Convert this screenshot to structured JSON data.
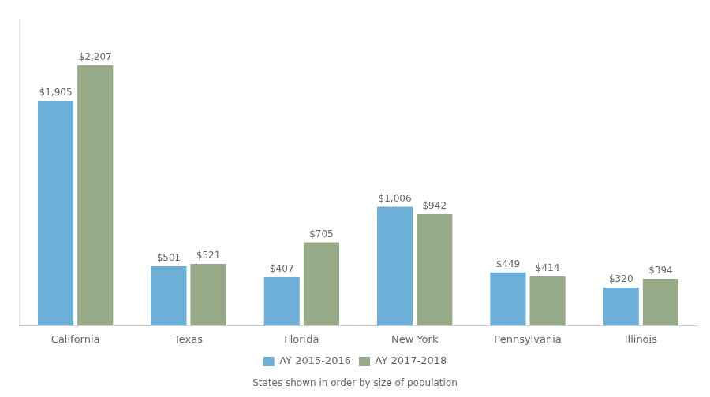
{
  "chart_data": {
    "type": "bar",
    "subtitle": "States shown in order by size of population",
    "categories": [
      "California",
      "Texas",
      "Florida",
      "New York",
      "Pennsylvania",
      "Illinois"
    ],
    "series": [
      {
        "name": "AY 2015-2016",
        "color": "#6cb0d8",
        "values": [
          1905,
          501,
          407,
          1006,
          449,
          320
        ],
        "value_labels": [
          "$1,905",
          "$501",
          "$407",
          "$1,006",
          "$449",
          "$320"
        ]
      },
      {
        "name": "AY 2017-2018",
        "color": "#96aa87",
        "values": [
          2207,
          521,
          705,
          942,
          414,
          394
        ],
        "value_labels": [
          "$2,207",
          "$521",
          "$705",
          "$942",
          "$414",
          "$394"
        ]
      }
    ],
    "ylim": [
      0,
      2600
    ],
    "data_labels": true,
    "tick_labels": "x",
    "grid": false,
    "legend": "bottom"
  }
}
